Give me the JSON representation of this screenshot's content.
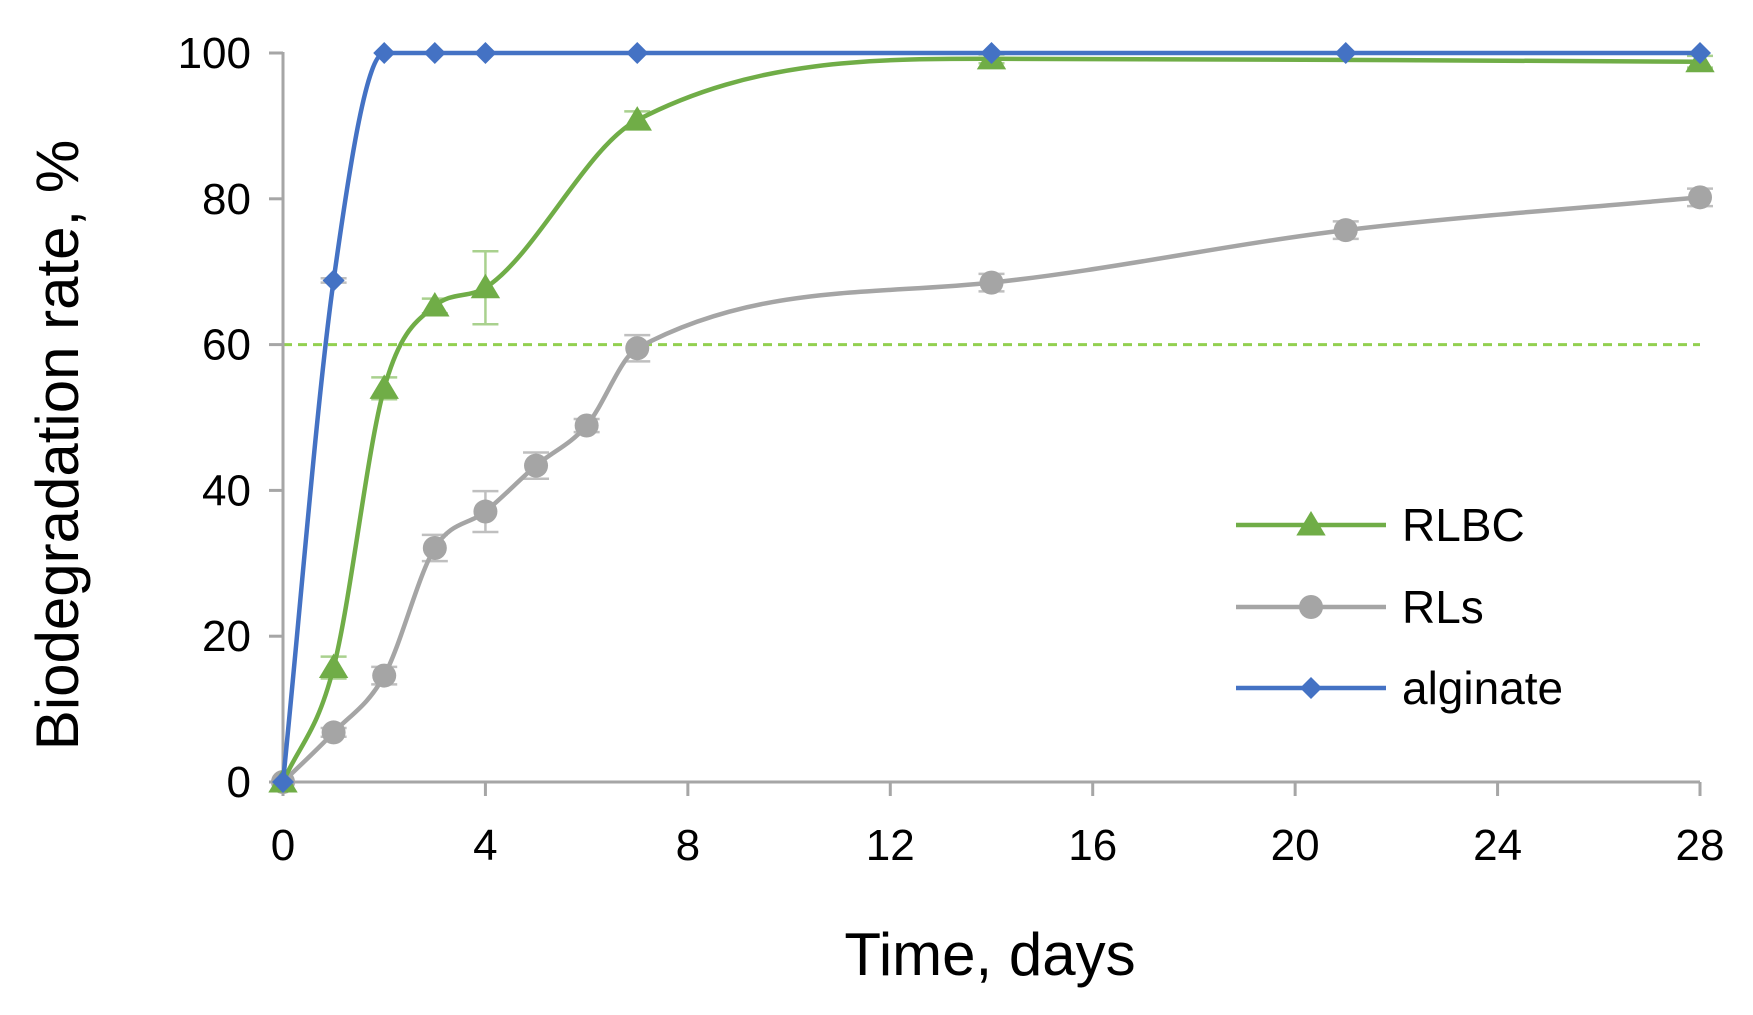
{
  "chart_data": {
    "type": "line",
    "title": "",
    "xlabel": "Time, days",
    "ylabel": "Biodegradation rate, %",
    "xlim": [
      0,
      28
    ],
    "ylim": [
      0,
      100
    ],
    "xticks": [
      0,
      4,
      8,
      12,
      16,
      20,
      24,
      28
    ],
    "yticks": [
      0,
      20,
      40,
      60,
      80,
      100
    ],
    "grid": false,
    "legend_position": "lower-right",
    "reference_line": {
      "y": 60,
      "style": "dashed",
      "color": "#92D050"
    },
    "series": [
      {
        "name": "RLBC",
        "color": "#70AD47",
        "marker": "triangle",
        "x": [
          0,
          1,
          2,
          3,
          4,
          7,
          14,
          28
        ],
        "y": [
          0,
          15.7,
          54,
          65.3,
          67.8,
          90.8,
          99.2,
          98.8
        ],
        "error": [
          0,
          1.5,
          1.5,
          1.0,
          5.0,
          1.2,
          0.6,
          0.8
        ]
      },
      {
        "name": "RLs",
        "color": "#A5A5A5",
        "marker": "circle",
        "x": [
          0,
          1,
          2,
          3,
          4,
          5,
          6,
          7,
          14,
          21,
          28
        ],
        "y": [
          0,
          6.8,
          14.6,
          32.1,
          37.1,
          43.4,
          48.9,
          59.5,
          68.5,
          75.7,
          80.2
        ],
        "error": [
          0,
          0.6,
          1.2,
          1.8,
          2.8,
          1.8,
          0.9,
          1.8,
          1.2,
          1.2,
          1.2
        ]
      },
      {
        "name": "alginate",
        "color": "#4472C4",
        "marker": "diamond",
        "x": [
          0,
          1,
          2,
          3,
          4,
          7,
          14,
          21,
          28
        ],
        "y": [
          0,
          68.8,
          100,
          100,
          100,
          100,
          100,
          100,
          100
        ],
        "error": [
          0,
          0.3,
          0,
          0,
          0,
          0,
          0,
          0,
          0
        ]
      }
    ]
  }
}
